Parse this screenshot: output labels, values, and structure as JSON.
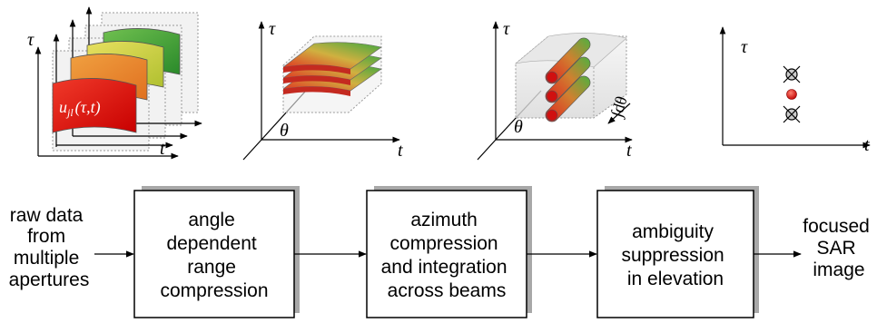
{
  "panels": {
    "p1": {
      "tau": "τ",
      "t": "t",
      "signal": "u",
      "signal_sub": "jl",
      "signal_args": "(τ,t)"
    },
    "p2": {
      "tau": "τ",
      "t": "t",
      "theta": "θ"
    },
    "p3": {
      "tau": "τ",
      "t": "t",
      "theta": "θ",
      "integral": "∫dθ"
    },
    "p4": {
      "tau": "τ",
      "t": "t"
    }
  },
  "flow": {
    "input": [
      "raw data",
      "from",
      "multiple",
      "apertures"
    ],
    "box1": [
      "angle",
      "dependent",
      "range",
      "compression"
    ],
    "box2": [
      "azimuth",
      "compression",
      "and integration",
      "across beams"
    ],
    "box3": [
      "ambiguity",
      "suppression",
      "in elevation"
    ],
    "output": [
      "focused",
      "SAR",
      "image"
    ]
  },
  "colors": {
    "red": "#e01010",
    "green": "#2a9a2a",
    "shadow": "#a8a8a8"
  }
}
